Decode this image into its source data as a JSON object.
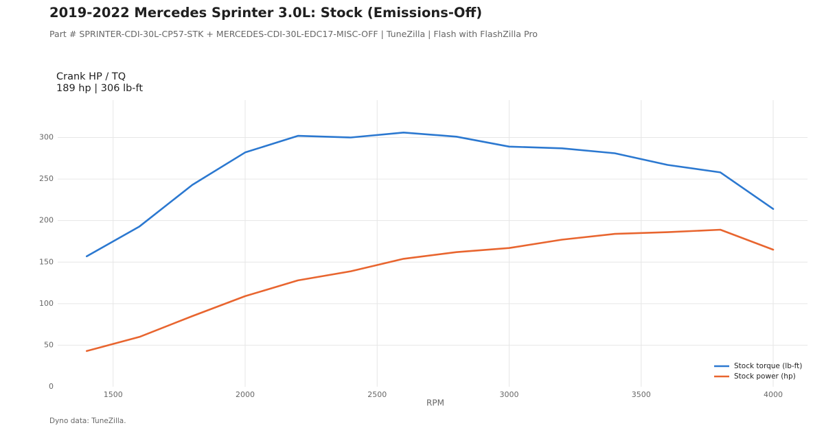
{
  "header": {
    "title": "2019-2022 Mercedes Sprinter 3.0L: Stock (Emissions-Off)",
    "subtitle": "Part # SPRINTER-CDI-30L-CP57-STK + MERCEDES-CDI-30L-EDC17-MISC-OFF  |  TuneZilla  |  Flash with FlashZilla Pro"
  },
  "chart_heading": {
    "line1": "Crank HP / TQ",
    "line2": "189 hp  |  306 lb-ft"
  },
  "footer": {
    "source": "Dyno data: TuneZilla."
  },
  "chart_data": {
    "type": "line",
    "xlabel": "RPM",
    "ylabel": "",
    "xlim": [
      1290,
      4130
    ],
    "ylim": [
      0,
      345
    ],
    "xticks": [
      1500,
      2000,
      2500,
      3000,
      3500,
      4000
    ],
    "yticks": [
      0,
      50,
      100,
      150,
      200,
      250,
      300
    ],
    "grid": true,
    "legend_position": "bottom-right",
    "x": [
      1400,
      1600,
      1800,
      2000,
      2200,
      2400,
      2600,
      2800,
      3000,
      3200,
      3400,
      3600,
      3800,
      4000
    ],
    "series": [
      {
        "name": "Stock torque (lb-ft)",
        "color": "#2b78d0",
        "values": [
          157,
          193,
          243,
          282,
          302,
          300,
          306,
          301,
          289,
          287,
          281,
          267,
          258,
          214
        ]
      },
      {
        "name": "Stock power (hp)",
        "color": "#e8652f",
        "values": [
          43,
          60,
          85,
          109,
          128,
          139,
          154,
          162,
          167,
          177,
          184,
          186,
          189,
          165
        ]
      }
    ]
  }
}
